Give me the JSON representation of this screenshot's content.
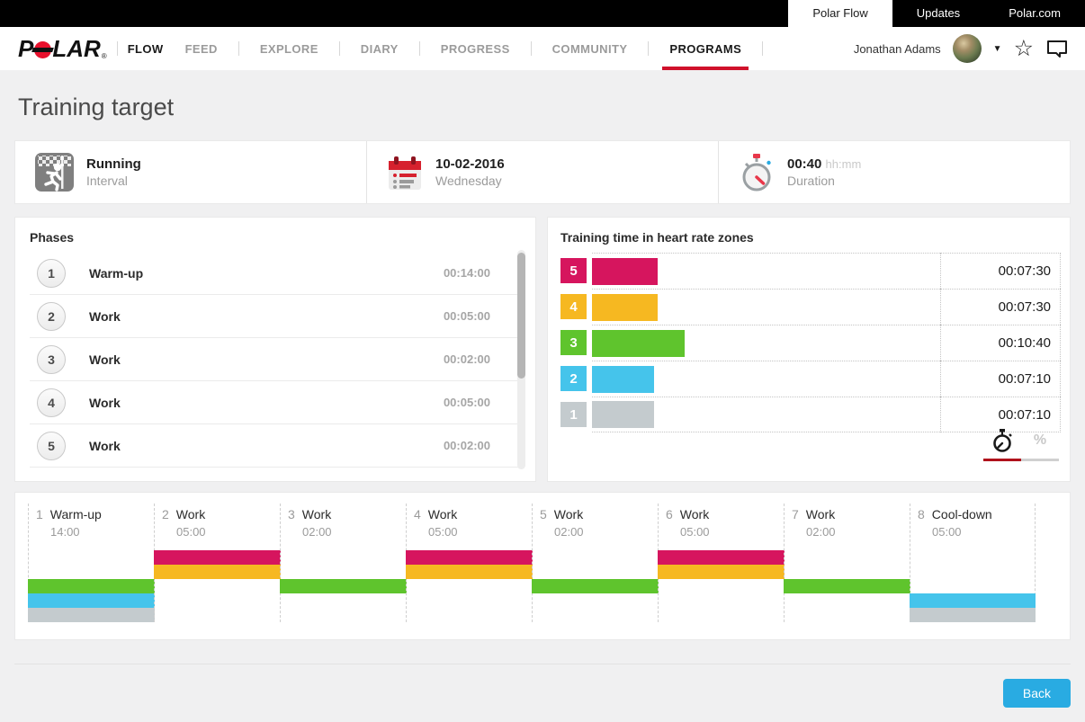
{
  "topbar": {
    "tabs": [
      {
        "label": "Polar Flow",
        "active": true
      },
      {
        "label": "Updates",
        "active": false
      },
      {
        "label": "Polar.com",
        "active": false
      }
    ]
  },
  "nav": {
    "logo": {
      "p": "P",
      "lar": "LAR",
      "reg": "®"
    },
    "brand_item": "FLOW",
    "items": [
      {
        "label": "FEED",
        "active": false
      },
      {
        "label": "EXPLORE",
        "active": false
      },
      {
        "label": "DIARY",
        "active": false
      },
      {
        "label": "PROGRESS",
        "active": false
      },
      {
        "label": "COMMUNITY",
        "active": false
      },
      {
        "label": "PROGRAMS",
        "active": true
      }
    ],
    "user": {
      "name": "Jonathan Adams"
    },
    "icons": {
      "star": "☆",
      "caret": "▼"
    }
  },
  "page": {
    "title": "Training target"
  },
  "summary": {
    "sport": {
      "icon": "running-sport-icon",
      "title": "Running",
      "subtitle": "Interval"
    },
    "date": {
      "icon": "calendar-icon",
      "title": "10-02-2016",
      "subtitle": "Wednesday"
    },
    "duration": {
      "icon": "stopwatch-icon",
      "value": "00:40",
      "unit": "hh:mm",
      "label": "Duration"
    }
  },
  "phases_panel": {
    "title": "Phases",
    "items": [
      {
        "number": "1",
        "name": "Warm-up",
        "duration": "00:14:00"
      },
      {
        "number": "2",
        "name": "Work",
        "duration": "00:05:00"
      },
      {
        "number": "3",
        "name": "Work",
        "duration": "00:02:00"
      },
      {
        "number": "4",
        "name": "Work",
        "duration": "00:05:00"
      },
      {
        "number": "5",
        "name": "Work",
        "duration": "00:02:00"
      }
    ]
  },
  "zones_panel": {
    "title": "Training time in heart rate zones",
    "zones": [
      {
        "zone": "5",
        "time": "00:07:30",
        "color": "#d6155e",
        "width_pct": 18.8
      },
      {
        "zone": "4",
        "time": "00:07:30",
        "color": "#f6b821",
        "width_pct": 18.8
      },
      {
        "zone": "3",
        "time": "00:10:40",
        "color": "#5fc42d",
        "width_pct": 26.7
      },
      {
        "zone": "2",
        "time": "00:07:10",
        "color": "#45c4eb",
        "width_pct": 17.9
      },
      {
        "zone": "1",
        "time": "00:07:10",
        "color": "#c4cbce",
        "width_pct": 17.9
      }
    ],
    "toggle": {
      "selected": "duration",
      "percent_label": "%"
    }
  },
  "timeline": {
    "phases": [
      {
        "number": "1",
        "name": "Warm-up",
        "time": "14:00",
        "zones": [
          3,
          2,
          1
        ]
      },
      {
        "number": "2",
        "name": "Work",
        "time": "05:00",
        "zones": [
          5,
          4
        ]
      },
      {
        "number": "3",
        "name": "Work",
        "time": "02:00",
        "zones": [
          3
        ]
      },
      {
        "number": "4",
        "name": "Work",
        "time": "05:00",
        "zones": [
          5,
          4
        ]
      },
      {
        "number": "5",
        "name": "Work",
        "time": "02:00",
        "zones": [
          3
        ]
      },
      {
        "number": "6",
        "name": "Work",
        "time": "05:00",
        "zones": [
          5,
          4
        ]
      },
      {
        "number": "7",
        "name": "Work",
        "time": "02:00",
        "zones": [
          3
        ]
      },
      {
        "number": "8",
        "name": "Cool-down",
        "time": "05:00",
        "zones": [
          2,
          1
        ]
      }
    ]
  },
  "footer": {
    "back_label": "Back"
  },
  "colors": {
    "accent_red": "#d0112b",
    "toggle_red": "#b0121c",
    "back_button_blue": "#29abe2",
    "polar_logo_red": "#e8112d"
  }
}
